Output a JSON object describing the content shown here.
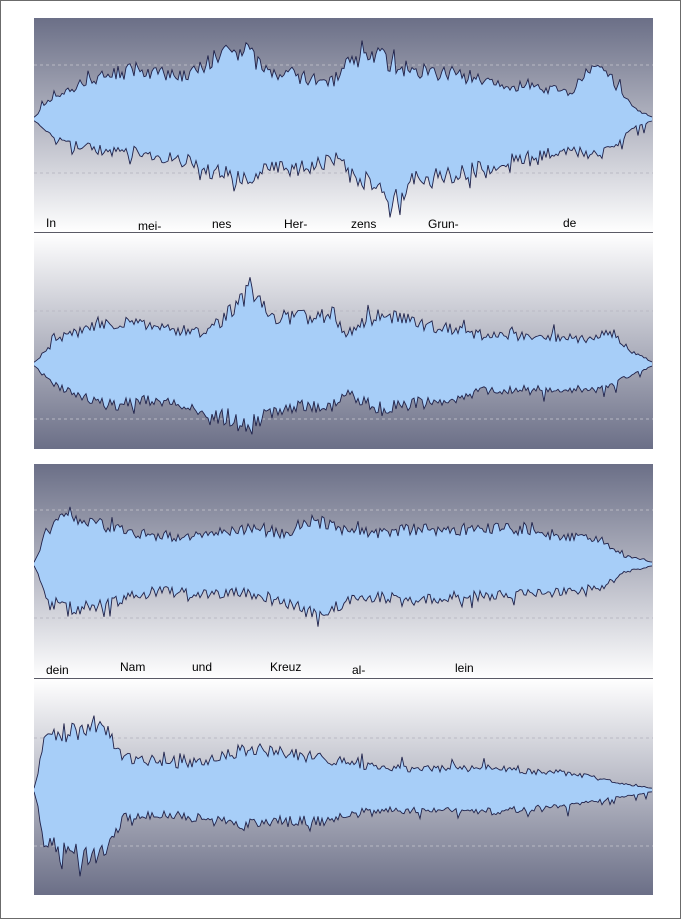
{
  "colors": {
    "panel_top": "#6b6f87",
    "panel_mid": "#ffffff",
    "waveform_fill": "#a7cef8",
    "waveform_outline": "#20224a",
    "gridline": "#b9b9c4"
  },
  "systems": [
    {
      "lyrics": [
        {
          "text": "In"
        },
        {
          "text": "mei-"
        },
        {
          "text": "nes"
        },
        {
          "text": "Her-"
        },
        {
          "text": "zens"
        },
        {
          "text": "Grun-"
        },
        {
          "text": "de"
        }
      ]
    },
    {
      "lyrics": [
        {
          "text": "dein"
        },
        {
          "text": "Nam"
        },
        {
          "text": "und"
        },
        {
          "text": "Kreuz"
        },
        {
          "text": "al-"
        },
        {
          "text": "lein"
        }
      ]
    }
  ]
}
